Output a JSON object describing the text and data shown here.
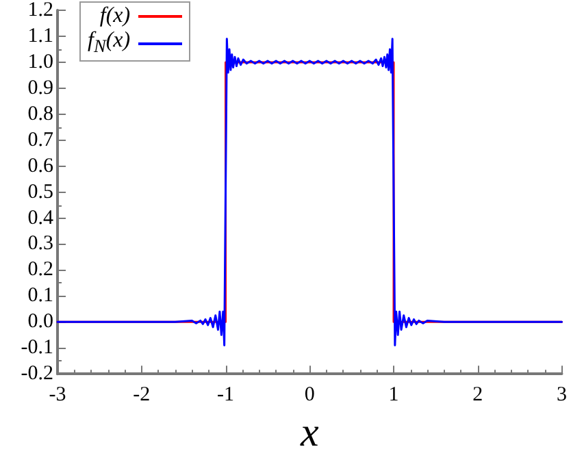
{
  "chart_data": {
    "type": "line",
    "xlabel": "x",
    "xlim": [
      -3,
      3
    ],
    "xticks": [
      -3,
      -2,
      -1,
      0,
      1,
      2,
      3
    ],
    "ylim": [
      -0.2,
      1.2
    ],
    "yticks": [
      -0.2,
      -0.1,
      {
        "value": 0,
        "label": "0.0"
      },
      0.1,
      0.2,
      0.3,
      0.4,
      0.5,
      0.6,
      0.7,
      0.8,
      0.9,
      {
        "value": 1,
        "label": "1.0"
      },
      1.1,
      1.2
    ],
    "grid": false,
    "legend": "top left",
    "marker": "none",
    "line_style": "solid",
    "series": [
      {
        "name": "f(x)",
        "color": "#ff0000",
        "x": [
          -3,
          -1,
          -1,
          1,
          1,
          3
        ],
        "values": [
          0,
          0,
          1,
          1,
          0,
          0
        ]
      },
      {
        "name": "f$_{N}$(x)",
        "color": "#0000ff",
        "x": [
          -3,
          -2,
          -1.6,
          -1.4,
          -1.35,
          -1.3,
          -1.27,
          -1.24,
          -1.21,
          -1.18,
          -1.15,
          -1.12,
          -1.09,
          -1.07,
          -1.05,
          -1.03,
          -1.015,
          -1.0,
          -0.985,
          -0.97,
          -0.955,
          -0.94,
          -0.925,
          -0.91,
          -0.89,
          -0.87,
          -0.85,
          -0.82,
          -0.79,
          -0.75,
          -0.7,
          -0.65,
          -0.6,
          -0.55,
          -0.5,
          -0.45,
          -0.4,
          -0.35,
          -0.3,
          -0.25,
          -0.2,
          -0.15,
          -0.1,
          -0.05,
          0,
          0.05,
          0.1,
          0.15,
          0.2,
          0.25,
          0.3,
          0.35,
          0.4,
          0.45,
          0.5,
          0.55,
          0.6,
          0.65,
          0.7,
          0.75,
          0.79,
          0.82,
          0.85,
          0.87,
          0.89,
          0.91,
          0.925,
          0.94,
          0.955,
          0.97,
          0.985,
          1.0,
          1.015,
          1.03,
          1.05,
          1.07,
          1.09,
          1.12,
          1.15,
          1.18,
          1.21,
          1.24,
          1.27,
          1.3,
          1.35,
          1.4,
          1.6,
          2,
          3
        ],
        "values": [
          0,
          0,
          0,
          0.005,
          -0.005,
          0.005,
          -0.008,
          0.01,
          -0.012,
          0.015,
          -0.02,
          0.025,
          -0.03,
          0.04,
          -0.05,
          0.04,
          -0.09,
          0.5,
          1.09,
          0.96,
          1.05,
          0.97,
          1.03,
          0.98,
          1.02,
          0.985,
          1.015,
          0.99,
          1.01,
          0.995,
          1.005,
          0.995,
          1.005,
          0.995,
          1.005,
          0.995,
          1.005,
          0.995,
          1.005,
          0.995,
          1.005,
          0.995,
          1.005,
          0.995,
          1.005,
          0.995,
          1.005,
          0.995,
          1.005,
          0.995,
          1.005,
          0.995,
          1.005,
          0.995,
          1.005,
          0.995,
          1.005,
          0.995,
          1.005,
          0.995,
          1.01,
          0.99,
          1.015,
          0.985,
          1.02,
          0.98,
          1.03,
          0.97,
          1.05,
          0.96,
          1.09,
          0.5,
          -0.09,
          0.04,
          -0.05,
          0.04,
          -0.03,
          0.025,
          -0.02,
          0.015,
          -0.012,
          0.01,
          -0.008,
          0.005,
          -0.005,
          0.005,
          0,
          0,
          0
        ]
      }
    ]
  }
}
